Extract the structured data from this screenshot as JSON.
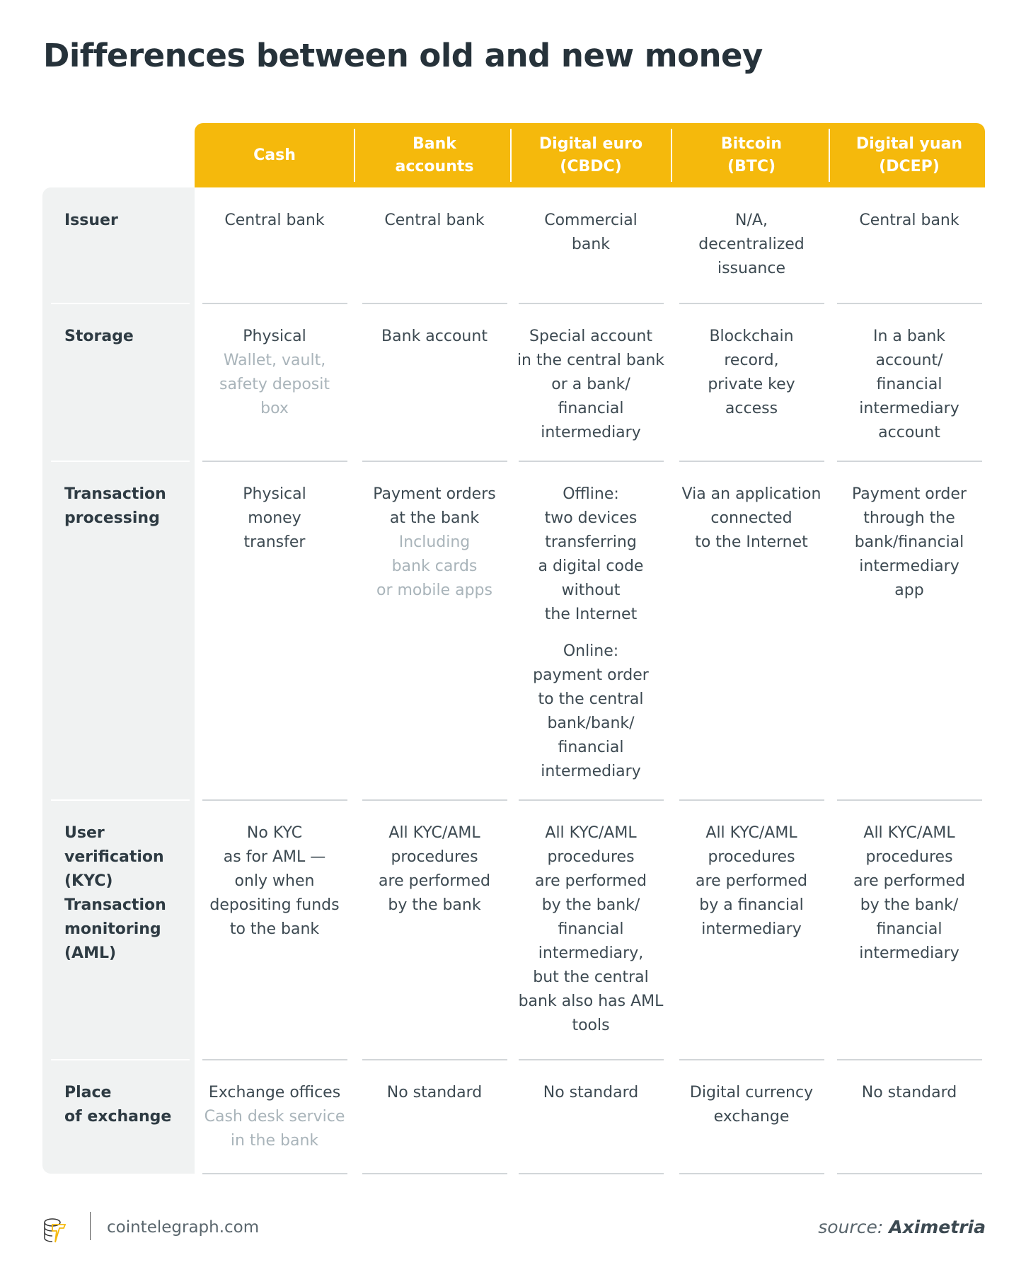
{
  "title": "Differences between old and new money",
  "colors": {
    "header": "#f5b90c",
    "text": "#3d4a52",
    "muted": "#a9b4ba",
    "label_bg": "#f0f2f2"
  },
  "columns": [
    "Cash",
    "Bank\naccounts",
    "Digital euro\n(CBDC)",
    "Bitcoin\n(BTC)",
    "Digital yuan\n(DCEP)"
  ],
  "rows": [
    {
      "label": "Issuer",
      "cells": [
        [
          {
            "text": "Central bank"
          }
        ],
        [
          {
            "text": "Central bank"
          }
        ],
        [
          {
            "text": "Commercial\nbank"
          }
        ],
        [
          {
            "text": "N/A,\ndecentralized\nissuance"
          }
        ],
        [
          {
            "text": "Central bank"
          }
        ]
      ]
    },
    {
      "label": "Storage",
      "cells": [
        [
          {
            "text": "Physical"
          },
          {
            "text": "Wallet, vault,\nsafety deposit\nbox",
            "muted": true
          }
        ],
        [
          {
            "text": "Bank account"
          }
        ],
        [
          {
            "text": "Special account\nin the central bank\nor a bank/\nfinancial\nintermediary"
          }
        ],
        [
          {
            "text": "Blockchain\nrecord,\nprivate key\naccess"
          }
        ],
        [
          {
            "text": "In a bank\naccount/\nfinancial\nintermediary\naccount"
          }
        ]
      ]
    },
    {
      "label": "Transaction\nprocessing",
      "cells": [
        [
          {
            "text": "Physical\nmoney\ntransfer"
          }
        ],
        [
          {
            "text": "Payment orders\nat the bank"
          },
          {
            "text": "Including\nbank cards\nor mobile apps",
            "muted": true
          }
        ],
        [
          {
            "text": "Offline:\ntwo devices\ntransferring\na digital code\nwithout\nthe Internet",
            "para": true
          },
          {
            "text": "Online:\npayment order\nto the central\nbank/bank/\nfinancial\nintermediary"
          }
        ],
        [
          {
            "text": "Via an application\nconnected\nto the Internet"
          }
        ],
        [
          {
            "text": "Payment order\nthrough the\nbank/financial\nintermediary\napp"
          }
        ]
      ]
    },
    {
      "label": "User\nverification\n(KYC)\nTransaction\nmonitoring\n(AML)",
      "cells": [
        [
          {
            "text": "No KYC\nas for AML —\nonly when\ndepositing funds\nto the bank"
          }
        ],
        [
          {
            "text": "All KYC/AML\nprocedures\nare performed\nby the bank"
          }
        ],
        [
          {
            "text": "All KYC/AML\nprocedures\nare performed\nby the bank/\nfinancial\nintermediary,\nbut the central\nbank also has AML\ntools"
          }
        ],
        [
          {
            "text": "All KYC/AML\nprocedures\nare performed\nby a financial\nintermediary"
          }
        ],
        [
          {
            "text": "All KYC/AML\nprocedures\nare performed\nby the bank/\nfinancial\nintermediary"
          }
        ]
      ]
    },
    {
      "label": "Place\nof exchange",
      "cells": [
        [
          {
            "text": "Exchange offices"
          },
          {
            "text": "Cash desk service\nin the bank",
            "muted": true
          }
        ],
        [
          {
            "text": "No standard"
          }
        ],
        [
          {
            "text": "No standard"
          }
        ],
        [
          {
            "text": "Digital currency\nexchange"
          }
        ],
        [
          {
            "text": "No standard"
          }
        ]
      ]
    }
  ],
  "footer": {
    "site": "cointelegraph.com",
    "source_prefix": "source:",
    "source_name": "Aximetria",
    "logo_icon": "cointelegraph-logo-icon"
  }
}
